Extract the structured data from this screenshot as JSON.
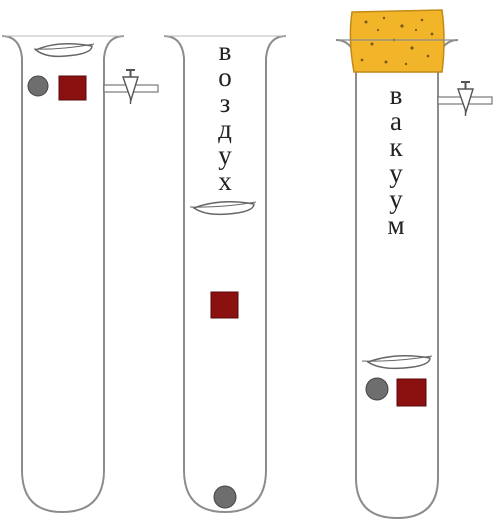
{
  "labels": {
    "air": "воздух",
    "vacuum": "вакуум"
  },
  "colors": {
    "tube_stroke": "#8c8c8c",
    "feather_stroke": "#666666",
    "coin": "#6e6e6e",
    "cork": "#8b1111",
    "sponge_plug": "#f2b52a",
    "sponge_dots": "#7a5a10",
    "valve": "#555555"
  },
  "icons": {
    "feather": "feather-icon",
    "coin": "coin-icon",
    "cork": "cork-square-icon",
    "valve": "valve-icon",
    "plug": "sponge-plug-icon"
  }
}
